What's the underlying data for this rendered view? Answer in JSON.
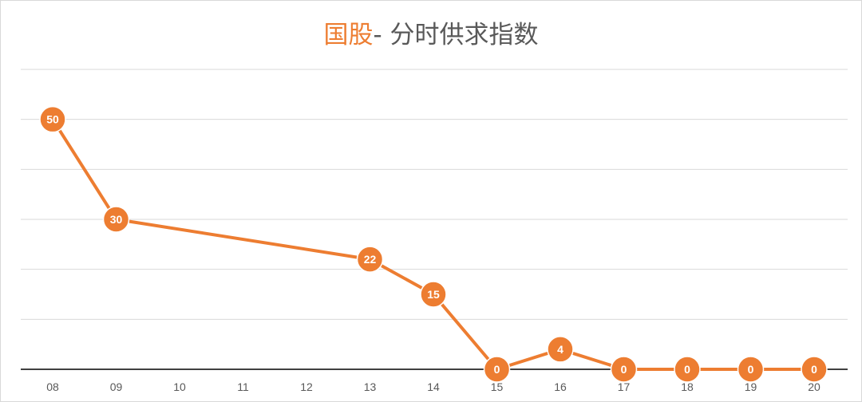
{
  "chart_data": {
    "type": "line",
    "title_highlight": "国股",
    "title_rest": "- 分时供求指数",
    "categories": [
      "08",
      "09",
      "10",
      "11",
      "12",
      "13",
      "14",
      "15",
      "16",
      "17",
      "18",
      "19",
      "20"
    ],
    "series": [
      {
        "values": [
          50,
          30,
          null,
          null,
          null,
          22,
          15,
          0,
          4,
          0,
          0,
          0,
          0
        ]
      }
    ],
    "ylim": [
      0,
      60
    ],
    "grid": true,
    "line_color": "#ed7d31"
  }
}
